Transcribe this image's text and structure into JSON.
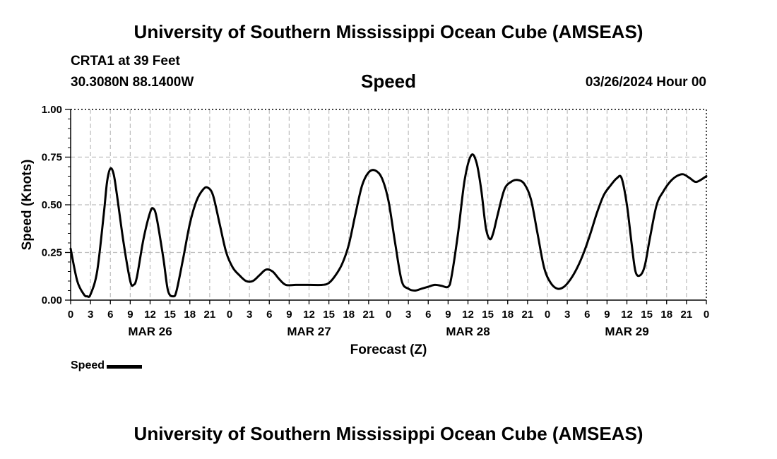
{
  "header": {
    "title": "University of Southern Mississippi Ocean Cube (AMSEAS)",
    "station": "CRTA1 at 39 Feet",
    "coords": "30.3080N  88.1400W",
    "date": "03/26/2024 Hour 00"
  },
  "footer": {
    "title": "University of Southern Mississippi Ocean Cube (AMSEAS)"
  },
  "legend": {
    "label": "Speed",
    "color": "#000000"
  },
  "chart_data": {
    "type": "line",
    "title": "Speed",
    "xlabel": "Forecast (Z)",
    "ylabel": "Speed (Knots)",
    "xlim": [
      0,
      96
    ],
    "ylim": [
      0,
      1
    ],
    "grid": true,
    "x_tick_labels": [
      "0",
      "3",
      "6",
      "9",
      "12",
      "15",
      "18",
      "21",
      "0",
      "3",
      "6",
      "9",
      "12",
      "15",
      "18",
      "21",
      "0",
      "3",
      "6",
      "9",
      "12",
      "15",
      "18",
      "21",
      "0",
      "3",
      "6",
      "9",
      "12",
      "15",
      "18",
      "21",
      "0"
    ],
    "y_ticks": [
      0,
      0.25,
      0.5,
      0.75,
      1.0
    ],
    "y_tick_labels": [
      "0.00",
      "0.25",
      "0.50",
      "0.75",
      "1.00"
    ],
    "day_labels": [
      {
        "hour": 12,
        "label": "MAR 26"
      },
      {
        "hour": 36,
        "label": "MAR 27"
      },
      {
        "hour": 60,
        "label": "MAR 28"
      },
      {
        "hour": 84,
        "label": "MAR 29"
      }
    ],
    "series": [
      {
        "name": "Speed",
        "color": "#000000",
        "points": [
          [
            0,
            0.27
          ],
          [
            1,
            0.1
          ],
          [
            2,
            0.03
          ],
          [
            2.5,
            0.02
          ],
          [
            3,
            0.03
          ],
          [
            4,
            0.15
          ],
          [
            5,
            0.45
          ],
          [
            5.5,
            0.62
          ],
          [
            6,
            0.69
          ],
          [
            6.5,
            0.66
          ],
          [
            7,
            0.55
          ],
          [
            8,
            0.3
          ],
          [
            9,
            0.1
          ],
          [
            9.5,
            0.08
          ],
          [
            10,
            0.12
          ],
          [
            11,
            0.32
          ],
          [
            12,
            0.46
          ],
          [
            12.5,
            0.48
          ],
          [
            13,
            0.43
          ],
          [
            14,
            0.22
          ],
          [
            14.7,
            0.05
          ],
          [
            15.5,
            0.02
          ],
          [
            16,
            0.05
          ],
          [
            17,
            0.22
          ],
          [
            18,
            0.4
          ],
          [
            19,
            0.52
          ],
          [
            20,
            0.58
          ],
          [
            20.7,
            0.59
          ],
          [
            21.5,
            0.55
          ],
          [
            22.5,
            0.4
          ],
          [
            23.5,
            0.25
          ],
          [
            24.5,
            0.17
          ],
          [
            25.5,
            0.13
          ],
          [
            26.5,
            0.1
          ],
          [
            27.5,
            0.1
          ],
          [
            28.5,
            0.13
          ],
          [
            29.5,
            0.16
          ],
          [
            30.5,
            0.15
          ],
          [
            31.5,
            0.11
          ],
          [
            32.5,
            0.08
          ],
          [
            34,
            0.08
          ],
          [
            36,
            0.08
          ],
          [
            38,
            0.08
          ],
          [
            39,
            0.09
          ],
          [
            40,
            0.13
          ],
          [
            41,
            0.19
          ],
          [
            42,
            0.29
          ],
          [
            43,
            0.45
          ],
          [
            44,
            0.6
          ],
          [
            45,
            0.67
          ],
          [
            46,
            0.68
          ],
          [
            47,
            0.64
          ],
          [
            48,
            0.52
          ],
          [
            49,
            0.3
          ],
          [
            50,
            0.1
          ],
          [
            51,
            0.06
          ],
          [
            52,
            0.05
          ],
          [
            53,
            0.06
          ],
          [
            54,
            0.07
          ],
          [
            55,
            0.08
          ],
          [
            56,
            0.075
          ],
          [
            57,
            0.07
          ],
          [
            57.5,
            0.12
          ],
          [
            58.5,
            0.35
          ],
          [
            59.5,
            0.63
          ],
          [
            60.5,
            0.76
          ],
          [
            61.3,
            0.72
          ],
          [
            62,
            0.58
          ],
          [
            62.7,
            0.38
          ],
          [
            63.3,
            0.32
          ],
          [
            63.8,
            0.35
          ],
          [
            64.5,
            0.45
          ],
          [
            65.5,
            0.58
          ],
          [
            66.5,
            0.62
          ],
          [
            67.5,
            0.63
          ],
          [
            68.5,
            0.61
          ],
          [
            69.5,
            0.53
          ],
          [
            70.5,
            0.35
          ],
          [
            71.5,
            0.17
          ],
          [
            72.5,
            0.09
          ],
          [
            73.5,
            0.06
          ],
          [
            74.5,
            0.07
          ],
          [
            75.5,
            0.11
          ],
          [
            76.5,
            0.17
          ],
          [
            77.5,
            0.25
          ],
          [
            78.5,
            0.35
          ],
          [
            79.5,
            0.46
          ],
          [
            80.5,
            0.55
          ],
          [
            81.5,
            0.6
          ],
          [
            82.5,
            0.64
          ],
          [
            83.2,
            0.64
          ],
          [
            84,
            0.5
          ],
          [
            84.7,
            0.3
          ],
          [
            85.3,
            0.15
          ],
          [
            86,
            0.13
          ],
          [
            86.7,
            0.18
          ],
          [
            87.5,
            0.33
          ],
          [
            88.5,
            0.5
          ],
          [
            89.5,
            0.57
          ],
          [
            90.5,
            0.62
          ],
          [
            91.5,
            0.65
          ],
          [
            92.5,
            0.66
          ],
          [
            93.5,
            0.64
          ],
          [
            94.5,
            0.62
          ],
          [
            96,
            0.65
          ]
        ]
      }
    ]
  }
}
